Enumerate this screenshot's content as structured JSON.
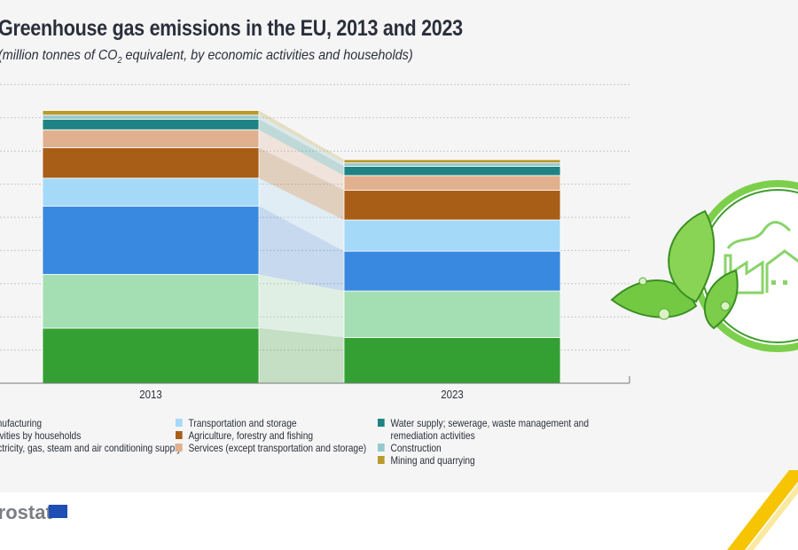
{
  "title": "Greenhouse gas emissions in the EU, 2013 and 2023",
  "subtitle_pre": "(million tonnes of CO",
  "subtitle_sub": "2",
  "subtitle_post": " equivalent, by economic activities and households)",
  "logo": "eurostat",
  "chart_data": {
    "type": "bar",
    "stacked": true,
    "categories": [
      "2013",
      "2023"
    ],
    "ylim": [
      0,
      4500
    ],
    "grid": true,
    "legend_position": "bottom",
    "series": [
      {
        "name": "Manufacturing",
        "color": "#34a034",
        "values": [
          830,
          690
        ]
      },
      {
        "name": "Activities by households",
        "color": "#a3dfb3",
        "values": [
          810,
          700
        ]
      },
      {
        "name": "Electricity, gas, steam and air conditioning supply",
        "color": "#3a89e0",
        "values": [
          1030,
          600
        ]
      },
      {
        "name": "Transportation and storage",
        "color": "#a5d9f8",
        "values": [
          420,
          470
        ]
      },
      {
        "name": "Agriculture, forestry and fishing",
        "color": "#a95e18",
        "values": [
          460,
          450
        ]
      },
      {
        "name": "Services (except transportation and storage)",
        "color": "#e1b08e",
        "values": [
          270,
          220
        ]
      },
      {
        "name": "Water supply; sewerage, waste management and remediation activities",
        "color": "#1f8383",
        "values": [
          160,
          140
        ]
      },
      {
        "name": "Construction",
        "color": "#94c9cc",
        "values": [
          60,
          50
        ]
      },
      {
        "name": "Mining and quarrying",
        "color": "#b89a2e",
        "values": [
          70,
          50
        ]
      }
    ]
  },
  "legend_columns": [
    [
      0,
      1,
      2
    ],
    [
      3,
      4,
      5
    ],
    [
      6,
      7,
      8
    ]
  ]
}
